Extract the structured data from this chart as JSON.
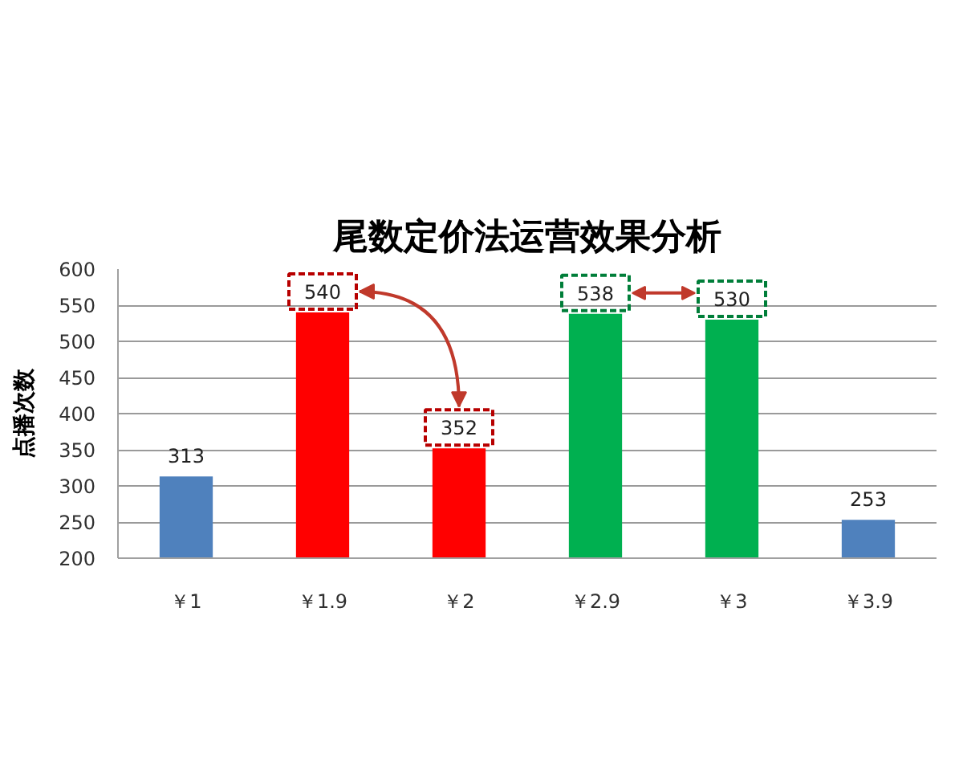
{
  "chart_data": {
    "type": "bar",
    "title": "尾数定价法运营效果分析",
    "ylabel": "点播次数",
    "categories": [
      "￥1",
      "￥1.9",
      "￥2",
      "￥2.9",
      "￥3",
      "￥3.9"
    ],
    "values": [
      313,
      540,
      352,
      538,
      530,
      253
    ],
    "colors": [
      "#4f81bd",
      "#ff0000",
      "#ff0000",
      "#00b050",
      "#00b050",
      "#4f81bd"
    ],
    "ylim": [
      200,
      600
    ],
    "yticks": [
      200,
      250,
      300,
      350,
      400,
      450,
      500,
      550,
      600
    ],
    "grid": "y",
    "data_labels": true
  }
}
